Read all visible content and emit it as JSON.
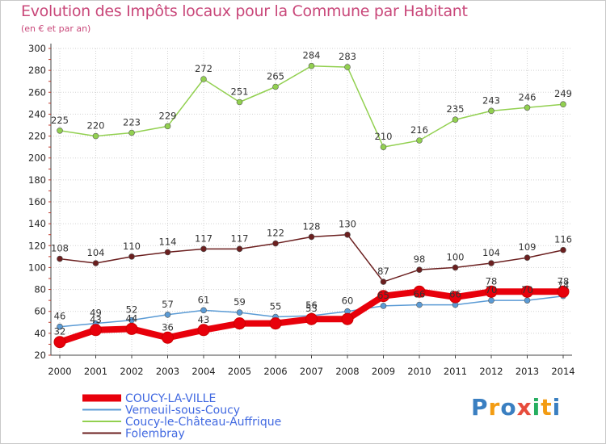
{
  "chart_data": {
    "type": "line",
    "title": "Evolution des Impôts locaux pour la Commune par Habitant",
    "subtitle": "(en € et par an)",
    "xlabel": "",
    "ylabel": "",
    "x": [
      "2000",
      "2001",
      "2002",
      "2003",
      "2004",
      "2005",
      "2006",
      "2007",
      "2008",
      "2009",
      "2010",
      "2011",
      "2012",
      "2013",
      "2014"
    ],
    "ylim": [
      20,
      300
    ],
    "yticks": [
      20,
      40,
      60,
      80,
      100,
      120,
      140,
      160,
      180,
      200,
      220,
      240,
      260,
      280,
      300
    ],
    "grid": true,
    "legend_position": "bottom-left",
    "series": [
      {
        "name": "COUCY-LA-VILLE",
        "color": "#e8000b",
        "values": [
          32,
          43,
          44,
          36,
          43,
          49,
          49,
          53,
          53,
          74,
          78,
          73,
          78,
          78,
          78
        ],
        "labels": [
          "32",
          "43",
          "44",
          "36",
          "43",
          "",
          "",
          "53",
          "",
          "",
          "",
          "",
          "78",
          "",
          "78"
        ]
      },
      {
        "name": "Verneuil-sous-Coucy",
        "color": "#5b9bd5",
        "values": [
          46,
          49,
          52,
          57,
          61,
          59,
          55,
          56,
          60,
          65,
          66,
          66,
          70,
          70,
          74
        ],
        "labels": [
          "46",
          "49",
          "52",
          "57",
          "61",
          "59",
          "55",
          "56",
          "60",
          "65",
          "66",
          "66",
          "70",
          "70",
          "74"
        ]
      },
      {
        "name": "Coucy-le-Château-Auffrique",
        "color": "#92d050",
        "values": [
          225,
          220,
          223,
          229,
          272,
          251,
          265,
          284,
          283,
          210,
          216,
          235,
          243,
          246,
          249
        ],
        "labels": [
          "225",
          "220",
          "223",
          "229",
          "272",
          "251",
          "265",
          "284",
          "283",
          "210",
          "216",
          "235",
          "243",
          "246",
          "249"
        ]
      },
      {
        "name": "Folembray",
        "color": "#6b1f1f",
        "values": [
          108,
          104,
          110,
          114,
          117,
          117,
          122,
          128,
          130,
          87,
          98,
          100,
          104,
          109,
          116
        ],
        "labels": [
          "108",
          "104",
          "110",
          "114",
          "117",
          "117",
          "122",
          "128",
          "130",
          "87",
          "98",
          "100",
          "104",
          "109",
          "116"
        ]
      }
    ]
  },
  "branding": {
    "logo_letters": [
      "P",
      "r",
      "o",
      "x",
      "i",
      "t",
      "i"
    ],
    "logo_colors": [
      "#3a7fc1",
      "#f39c12",
      "#3a7fc1",
      "#e74c3c",
      "#27ae60",
      "#f39c12",
      "#3a7fc1"
    ]
  }
}
